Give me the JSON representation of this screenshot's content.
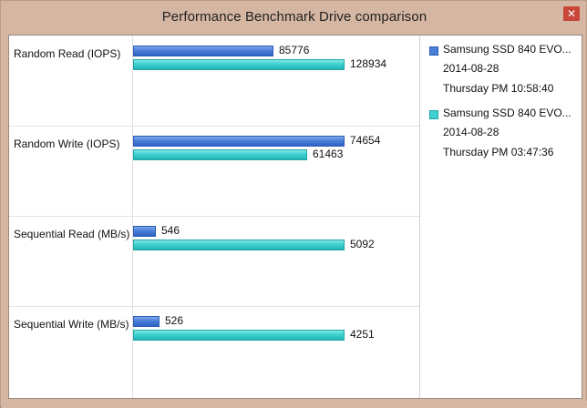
{
  "window": {
    "title": "Performance Benchmark Drive comparison",
    "close_glyph": "✕"
  },
  "chart_data": {
    "type": "bar",
    "orientation": "horizontal",
    "categories": [
      "Random Read (IOPS)",
      "Random Write (IOPS)",
      "Sequential Read (MB/s)",
      "Sequential Write (MB/s)"
    ],
    "series": [
      {
        "name": "Samsung SSD 840 EVO...",
        "date": "2014-08-28",
        "time": "Thursday PM 10:58:40",
        "color": "#4a7fd8",
        "values": [
          85776,
          74654,
          546,
          526
        ]
      },
      {
        "name": "Samsung SSD 840 EVO...",
        "date": "2014-08-28",
        "time": "Thursday PM 03:47:36",
        "color": "#3fd0cf",
        "values": [
          128934,
          61463,
          5092,
          4251
        ]
      }
    ],
    "legend_position": "right",
    "scale": "per-category"
  }
}
